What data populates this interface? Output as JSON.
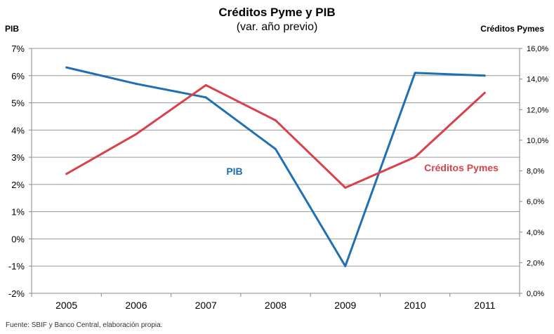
{
  "chart_data": {
    "type": "line",
    "title": "Créditos Pyme y PIB",
    "subtitle": "(var. año previo)",
    "left_axis_label": "PIB",
    "right_axis_label": "Créditos Pymes",
    "categories": [
      "2005",
      "2006",
      "2007",
      "2008",
      "2009",
      "2010",
      "2011"
    ],
    "left_axis": {
      "min": -2,
      "max": 7,
      "ticks": [
        "-2%",
        "-1%",
        "0%",
        "1%",
        "2%",
        "3%",
        "4%",
        "5%",
        "6%",
        "7%"
      ]
    },
    "right_axis": {
      "min": 0,
      "max": 16,
      "ticks": [
        "0,0%",
        "2,0%",
        "4,0%",
        "6,0%",
        "8,0%",
        "10,0%",
        "12,0%",
        "14,0%",
        "16,0%"
      ]
    },
    "grid": true,
    "series": [
      {
        "name": "PIB",
        "axis": "left",
        "color": "#1f6fb4",
        "values": [
          6.3,
          5.7,
          5.2,
          3.3,
          -1.0,
          6.1,
          6.0
        ]
      },
      {
        "name": "Créditos Pymes",
        "axis": "right",
        "color": "#d9414b",
        "values": [
          7.8,
          10.4,
          13.6,
          11.3,
          6.9,
          8.9,
          13.1
        ]
      }
    ]
  },
  "footer": {
    "source": "Fuente: SBIF y Banco Central, elaboración propia."
  }
}
